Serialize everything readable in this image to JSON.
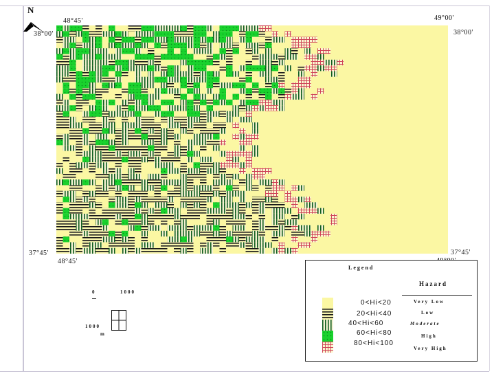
{
  "map": {
    "north_label": "N",
    "coords": {
      "top_left_lon": "48°45'",
      "top_left_lat": "38°00'",
      "top_right_lon": "49°00'",
      "top_right_lat": "38°00'",
      "bottom_left_lat": "37°45'",
      "bottom_left_lon": "48°45'",
      "bottom_right_lat": "37°45'",
      "bottom_right_lon": "49°00'"
    }
  },
  "legend": {
    "title": "Legend",
    "header": "Hazard",
    "items": [
      {
        "range": "0<Hi<20",
        "label": "Very Low",
        "color": "#fbf7a3"
      },
      {
        "range": "20<Hi<40",
        "label": "Low",
        "color": "#000000"
      },
      {
        "range": "40<Hi<60",
        "label": "Moderate",
        "color": "#0e5c1e"
      },
      {
        "range": "60<Hi<80",
        "label": "High",
        "color": "#19d22d"
      },
      {
        "range": "80<Hi<100",
        "label": "Very High",
        "color": "#d0465a"
      }
    ]
  },
  "scale": {
    "label_origin": "0",
    "label_horizontal": "1000",
    "label_vertical": "1000",
    "unit": "m"
  }
}
